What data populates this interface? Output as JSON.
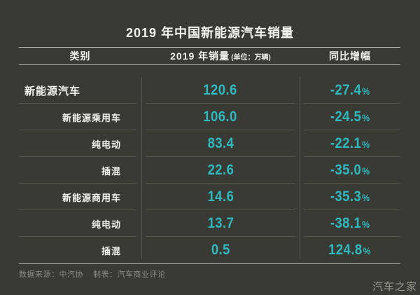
{
  "title": "2019 年中国新能源汽车销量",
  "table": {
    "headers": {
      "category": "类别",
      "sales": "2019 年销量",
      "sales_unit": "(单位：万辆)",
      "yoy": "同比增幅"
    },
    "percent_sign": "%",
    "rows": [
      {
        "category": "新能源汽车",
        "sales": "120.6",
        "yoy": "-27.4",
        "level": 0
      },
      {
        "category": "新能源乘用车",
        "sales": "106.0",
        "yoy": "-24.5",
        "level": 1
      },
      {
        "category": "纯电动",
        "sales": "83.4",
        "yoy": "-22.1",
        "level": 2
      },
      {
        "category": "插混",
        "sales": "22.6",
        "yoy": "-35.0",
        "level": 2
      },
      {
        "category": "新能源商用车",
        "sales": "14.6",
        "yoy": "-35.3",
        "level": 1
      },
      {
        "category": "纯电动",
        "sales": "13.7",
        "yoy": "-38.1",
        "level": 2
      },
      {
        "category": "插混",
        "sales": "0.5",
        "yoy": "124.8",
        "level": 2
      }
    ]
  },
  "footer": {
    "source": "数据来源：中汽协",
    "credit": "制表：汽车商业评论"
  },
  "watermark": "汽车之家",
  "colors": {
    "background": "#3a3a35",
    "accent": "#2fb9be",
    "text": "#f1f1ee",
    "muted": "#8b8b85",
    "muted2": "#96968f",
    "line_strong": "#c2c2bd",
    "line_mid": "#5a5a54",
    "line_faint": "#55554e"
  },
  "chart_data": {
    "type": "table",
    "title": "2019 年中国新能源汽车销量",
    "columns": [
      "类别",
      "2019 年销量（单位：万辆）",
      "同比增幅"
    ],
    "rows": [
      [
        "新能源汽车",
        120.6,
        "-27.4%"
      ],
      [
        "新能源乘用车",
        106.0,
        "-24.5%"
      ],
      [
        "纯电动",
        83.4,
        "-22.1%"
      ],
      [
        "插混",
        22.6,
        "-35.0%"
      ],
      [
        "新能源商用车",
        14.6,
        "-35.3%"
      ],
      [
        "纯电动",
        13.7,
        "-38.1%"
      ],
      [
        "插混",
        0.5,
        "124.8%"
      ]
    ]
  }
}
